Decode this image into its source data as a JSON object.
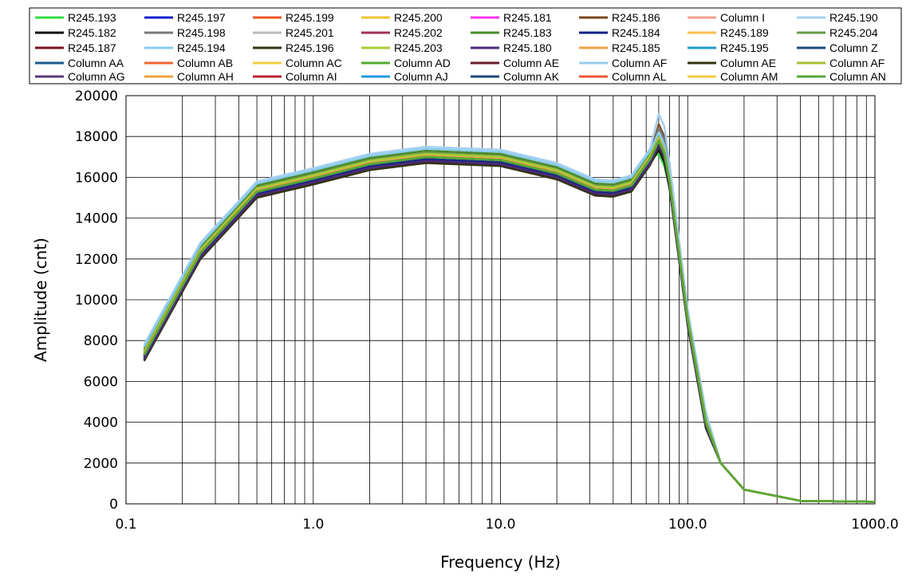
{
  "chart_data": {
    "type": "line",
    "xlabel": "Frequency (Hz)",
    "ylabel": "Amplitude (cnt)",
    "x_scale": "log",
    "xlim": [
      0.1,
      1000
    ],
    "ylim": [
      0,
      20000
    ],
    "x_ticks": [
      0.1,
      1,
      10,
      100,
      1000
    ],
    "x_tick_labels": [
      "0.1",
      "1.0",
      "10.0",
      "100.0",
      "1000.0"
    ],
    "y_ticks": [
      0,
      2000,
      4000,
      6000,
      8000,
      10000,
      12000,
      14000,
      16000,
      18000,
      20000
    ],
    "y_tick_labels": [
      "0",
      "2000",
      "4000",
      "6000",
      "8000",
      "10000",
      "12000",
      "14000",
      "16000",
      "18000",
      "20000"
    ],
    "grid": true,
    "legend_position": "top",
    "x": [
      0.125,
      0.25,
      0.5,
      1,
      2,
      4,
      10,
      20,
      32,
      40,
      50,
      63,
      70,
      75,
      80,
      100,
      125,
      150,
      200,
      400,
      1000
    ],
    "base_curve": [
      7300,
      12300,
      15300,
      15950,
      16650,
      17000,
      16850,
      16200,
      15400,
      15350,
      15600,
      16900,
      17800,
      17200,
      15800,
      9000,
      4000,
      2000,
      700,
      150,
      100
    ],
    "series": [
      {
        "name": "R245.193",
        "color": "#33dd44",
        "offset": 50,
        "peak_offset": -700
      },
      {
        "name": "R245.197",
        "color": "#1122cc",
        "offset": 0,
        "peak_offset": 0
      },
      {
        "name": "R245.199",
        "color": "#ee5522",
        "offset": 100,
        "peak_offset": 0
      },
      {
        "name": "R245.200",
        "color": "#f2c230",
        "offset": -100,
        "peak_offset": 0
      },
      {
        "name": "R245.181",
        "color": "#ff33ee",
        "offset": -50,
        "peak_offset": 100
      },
      {
        "name": "R245.186",
        "color": "#7a4a1a",
        "offset": 200,
        "peak_offset": 600
      },
      {
        "name": "Column I",
        "color": "#f4a090",
        "offset": 50,
        "peak_offset": 0
      },
      {
        "name": "R245.190",
        "color": "#a8d0f0",
        "offset": 500,
        "peak_offset": 800
      },
      {
        "name": "R245.182",
        "color": "#111111",
        "offset": -250,
        "peak_offset": -200
      },
      {
        "name": "R245.198",
        "color": "#777777",
        "offset": 150,
        "peak_offset": 500
      },
      {
        "name": "R245.201",
        "color": "#bbbbbb",
        "offset": 100,
        "peak_offset": 0
      },
      {
        "name": "R245.202",
        "color": "#a0305a",
        "offset": -150,
        "peak_offset": 0
      },
      {
        "name": "R245.183",
        "color": "#4a8a2a",
        "offset": 300,
        "peak_offset": 0
      },
      {
        "name": "R245.184",
        "color": "#112288",
        "offset": -100,
        "peak_offset": 0
      },
      {
        "name": "R245.189",
        "color": "#f8c050",
        "offset": 0,
        "peak_offset": 0
      },
      {
        "name": "R245.204",
        "color": "#6a9a4a",
        "offset": 200,
        "peak_offset": 0
      },
      {
        "name": "R245.187",
        "color": "#7a1020",
        "offset": -200,
        "peak_offset": 0
      },
      {
        "name": "R245.194",
        "color": "#88ccee",
        "offset": 400,
        "peak_offset": 0
      },
      {
        "name": "R245.196",
        "color": "#333311",
        "offset": -300,
        "peak_offset": 0
      },
      {
        "name": "R245.203",
        "color": "#a8cc33",
        "offset": 150,
        "peak_offset": 0
      },
      {
        "name": "R245.180",
        "color": "#4a2a7a",
        "offset": -200,
        "peak_offset": 0
      },
      {
        "name": "R245.185",
        "color": "#f0a040",
        "offset": 50,
        "peak_offset": 0
      },
      {
        "name": "R245.195",
        "color": "#2299cc",
        "offset": 0,
        "peak_offset": 0
      },
      {
        "name": "Column Z",
        "color": "#1a4a7a",
        "offset": -50,
        "peak_offset": 0
      },
      {
        "name": "Column AA",
        "color": "#1a5a8a",
        "offset": 0,
        "peak_offset": 0
      },
      {
        "name": "Column AB",
        "color": "#ee6633",
        "offset": 0,
        "peak_offset": 0
      },
      {
        "name": "Column AC",
        "color": "#f4cc40",
        "offset": 0,
        "peak_offset": 0
      },
      {
        "name": "Column AD",
        "color": "#55aa33",
        "offset": 0,
        "peak_offset": 0
      },
      {
        "name": "Column AE",
        "color": "#6a1a2a",
        "offset": 0,
        "peak_offset": 0
      },
      {
        "name": "Column AF",
        "color": "#99ccee",
        "offset": 0,
        "peak_offset": 0
      },
      {
        "name": "Column AE",
        "color": "#333311",
        "offset": 0,
        "peak_offset": 0
      },
      {
        "name": "Column AF",
        "color": "#aabb33",
        "offset": 0,
        "peak_offset": 0
      },
      {
        "name": "Column AG",
        "color": "#5a3a7a",
        "offset": 0,
        "peak_offset": 0
      },
      {
        "name": "Column AH",
        "color": "#f0a040",
        "offset": 0,
        "peak_offset": 0
      },
      {
        "name": "Column AI",
        "color": "#bb2233",
        "offset": 0,
        "peak_offset": 0
      },
      {
        "name": "Column AJ",
        "color": "#2299dd",
        "offset": 0,
        "peak_offset": 0
      },
      {
        "name": "Column AK",
        "color": "#1a4a7a",
        "offset": 0,
        "peak_offset": 0
      },
      {
        "name": "Column AL",
        "color": "#ee5533",
        "offset": 0,
        "peak_offset": 0
      },
      {
        "name": "Column AM",
        "color": "#f4cc40",
        "offset": 0,
        "peak_offset": 0
      },
      {
        "name": "Column AN",
        "color": "#55aa33",
        "offset": 0,
        "peak_offset": 0
      }
    ]
  }
}
